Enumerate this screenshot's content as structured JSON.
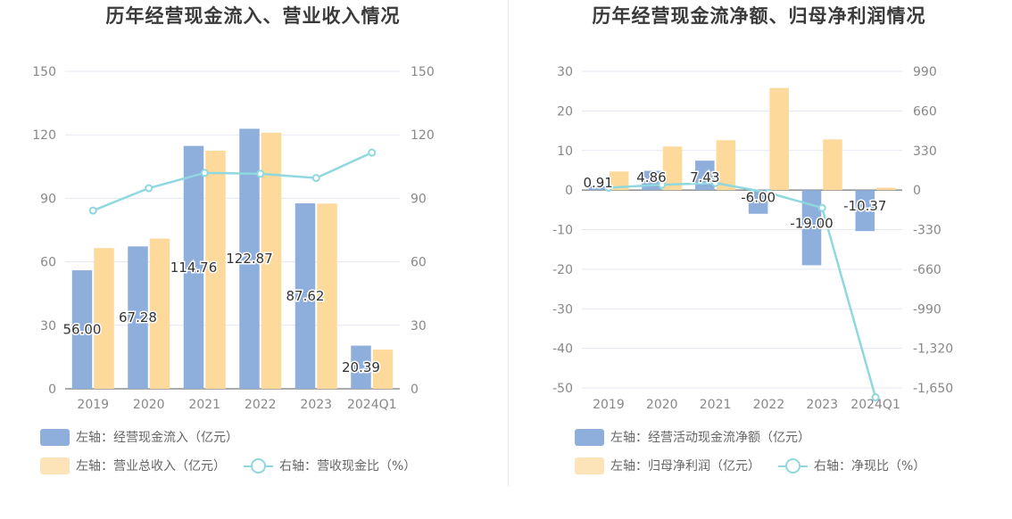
{
  "chart_data": [
    {
      "type": "bar",
      "title": "历年经营现金流入、营业收入情况",
      "categories": [
        "2019",
        "2020",
        "2021",
        "2022",
        "2023",
        "2024Q1"
      ],
      "left_axis": {
        "ticks": [
          "0",
          "30",
          "60",
          "90",
          "120",
          "150"
        ],
        "ylim": [
          0,
          150
        ]
      },
      "right_axis": {
        "ticks": [
          "0",
          "30",
          "60",
          "90",
          "120",
          "150"
        ],
        "ylim": [
          0,
          150
        ]
      },
      "grid": true,
      "series": [
        {
          "name": "左轴：经营现金流入（亿元）",
          "type": "bar",
          "axis": "left",
          "color": "#8eaedc",
          "values": [
            56.0,
            67.28,
            114.76,
            122.87,
            87.62,
            20.39
          ],
          "labels": [
            "56.00",
            "67.28",
            "114.76",
            "122.87",
            "87.62",
            "20.39"
          ]
        },
        {
          "name": "左轴：营业总收入（亿元）",
          "type": "bar",
          "axis": "left",
          "color": "#fdd99b",
          "values": [
            66.5,
            71.0,
            112.5,
            121.0,
            87.5,
            18.5
          ]
        },
        {
          "name": "右轴：营收现金比（%）",
          "type": "line",
          "axis": "right",
          "color": "#8fd8df",
          "values": [
            84.2,
            94.8,
            102.0,
            101.6,
            99.6,
            111.6
          ]
        }
      ]
    },
    {
      "type": "bar",
      "title": "历年经营现金流净额、归母净利润情况",
      "categories": [
        "2019",
        "2020",
        "2021",
        "2022",
        "2023",
        "2024Q1"
      ],
      "left_axis": {
        "ticks": [
          "-50",
          "-40",
          "-30",
          "-20",
          "-10",
          "0",
          "10",
          "20",
          "30"
        ],
        "ylim": [
          -50,
          30
        ]
      },
      "right_axis": {
        "ticks": [
          "-1,650",
          "-1,320",
          "-990",
          "-660",
          "-330",
          "0",
          "330",
          "660",
          "990"
        ],
        "ylim": [
          -1650,
          990
        ]
      },
      "grid": true,
      "series": [
        {
          "name": "左轴：经营活动现金流净额（亿元）",
          "type": "bar",
          "axis": "left",
          "color": "#8eaedc",
          "values": [
            0.91,
            4.86,
            7.43,
            -6.0,
            -19.0,
            -10.37
          ],
          "labels": [
            "0.91",
            "4.86",
            "7.43",
            "-6.00",
            "-19.00",
            "-10.37"
          ]
        },
        {
          "name": "左轴：归母净利润（亿元）",
          "type": "bar",
          "axis": "left",
          "color": "#fdd99b",
          "values": [
            4.7,
            11.0,
            12.6,
            25.8,
            12.8,
            0.6
          ]
        },
        {
          "name": "右轴：净现比（%）",
          "type": "line",
          "axis": "right",
          "color": "#8fd8df",
          "values": [
            19.4,
            44.2,
            59.0,
            -23.3,
            -148.4,
            -1728.3
          ]
        }
      ]
    }
  ]
}
